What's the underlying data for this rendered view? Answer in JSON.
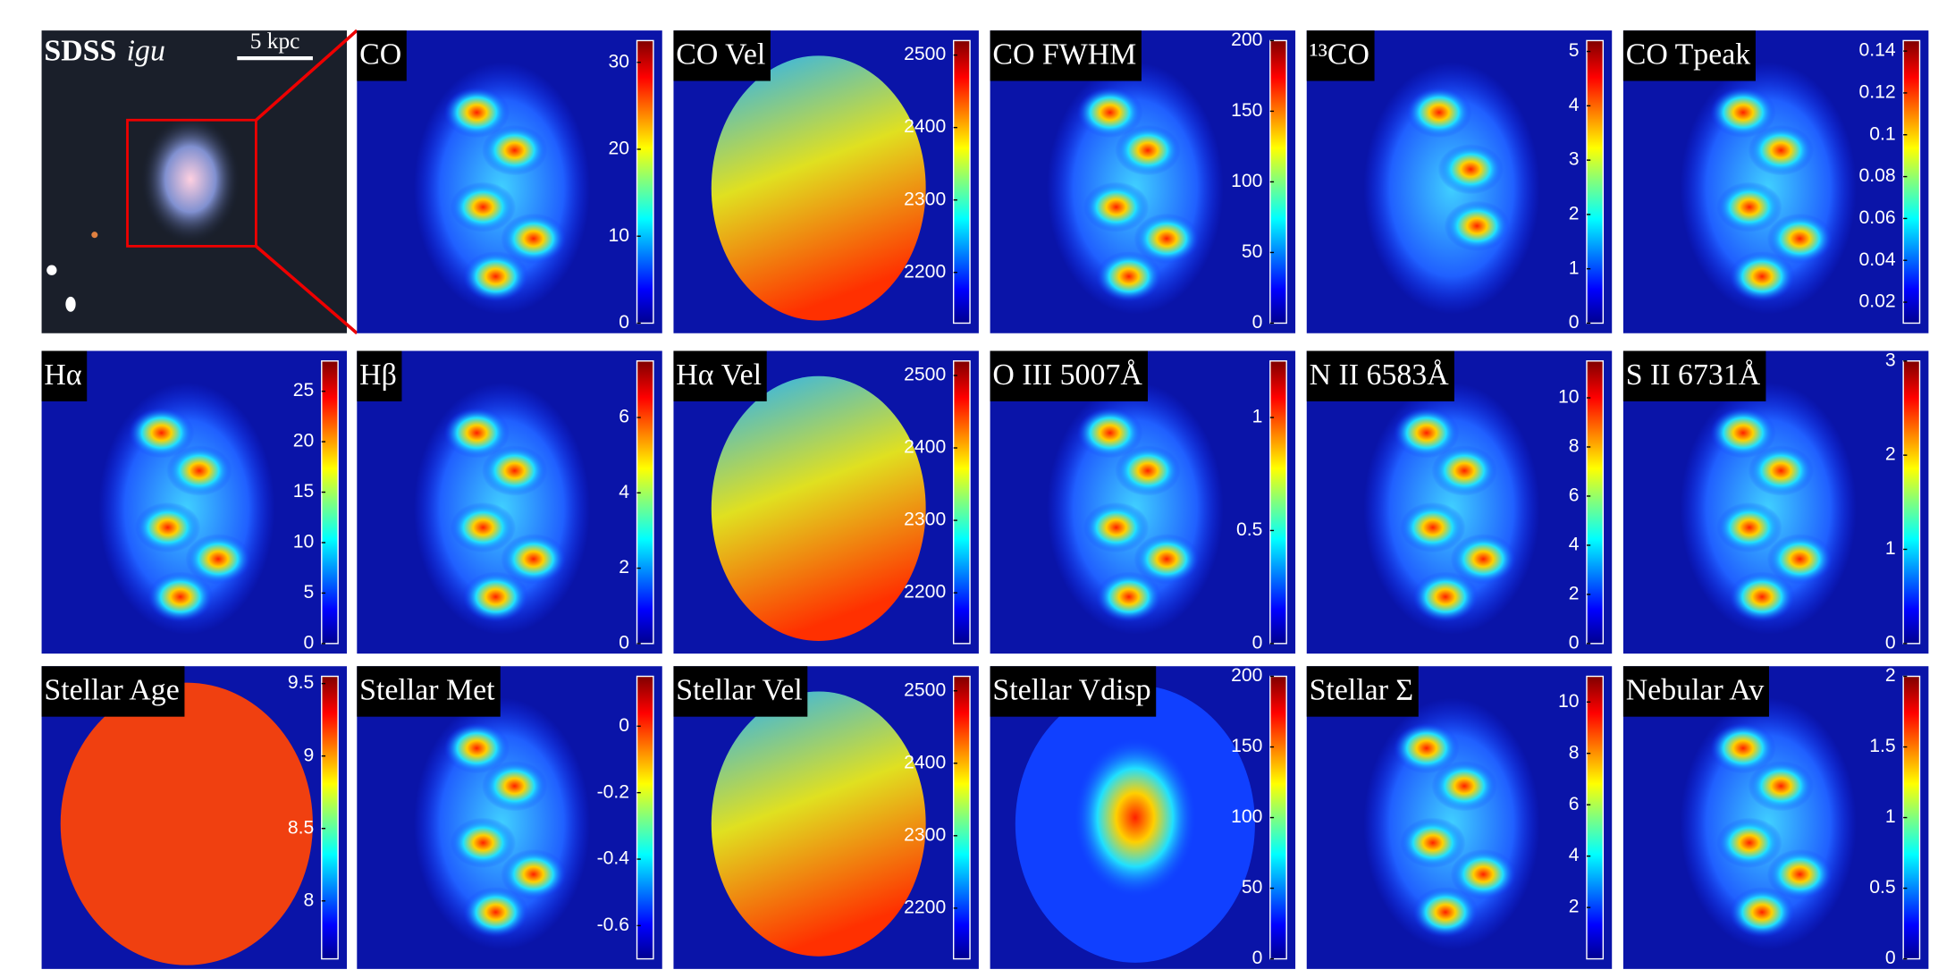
{
  "panels": [
    {
      "title": "SDSS",
      "title_italic": "igu",
      "scalebar": "5 kpc"
    },
    {
      "title": "CO",
      "cbar": {
        "lim": [
          0,
          32.5
        ],
        "ticks": [
          0,
          10,
          20,
          30
        ]
      }
    },
    {
      "title": "CO Vel",
      "cbar": {
        "lim": [
          2130,
          2520
        ],
        "ticks": [
          2200,
          2300,
          2400,
          2500
        ]
      }
    },
    {
      "title": "CO FWHM",
      "cbar": {
        "lim": [
          0,
          200
        ],
        "ticks": [
          0,
          50,
          100,
          150,
          200
        ]
      }
    },
    {
      "title": "¹³CO",
      "cbar": {
        "lim": [
          0,
          5.2
        ],
        "ticks": [
          0,
          1,
          2,
          3,
          4,
          5
        ]
      }
    },
    {
      "title": "CO Tpeak",
      "cbar": {
        "lim": [
          0.01,
          0.145
        ],
        "ticks": [
          0.02,
          0.04,
          0.06,
          0.08,
          0.1,
          0.12,
          0.14
        ]
      }
    },
    {
      "title": "Hα",
      "cbar": {
        "lim": [
          0,
          28
        ],
        "ticks": [
          0,
          5,
          10,
          15,
          20,
          25
        ]
      }
    },
    {
      "title": "Hβ",
      "cbar": {
        "lim": [
          0,
          7.5
        ],
        "ticks": [
          0,
          2,
          4,
          6
        ]
      }
    },
    {
      "title": "Hα Vel",
      "cbar": {
        "lim": [
          2130,
          2520
        ],
        "ticks": [
          2200,
          2300,
          2400,
          2500
        ]
      }
    },
    {
      "title": "O III 5007Å",
      "cbar": {
        "lim": [
          0,
          1.25
        ],
        "ticks": [
          0,
          0.5,
          1
        ]
      }
    },
    {
      "title": "N II 6583Å",
      "cbar": {
        "lim": [
          0,
          11.5
        ],
        "ticks": [
          0,
          2,
          4,
          6,
          8,
          10
        ]
      }
    },
    {
      "title": "S II 6731Å",
      "cbar": {
        "lim": [
          0,
          3
        ],
        "ticks": [
          0,
          1,
          2,
          3
        ]
      }
    },
    {
      "title": "Stellar Age",
      "cbar": {
        "lim": [
          7.6,
          9.55
        ],
        "ticks": [
          8,
          8.5,
          9,
          9.5
        ]
      }
    },
    {
      "title": "Stellar Met",
      "cbar": {
        "lim": [
          -0.7,
          0.15
        ],
        "ticks": [
          -0.6,
          -0.4,
          -0.2,
          0
        ]
      }
    },
    {
      "title": "Stellar Vel",
      "cbar": {
        "lim": [
          2130,
          2520
        ],
        "ticks": [
          2200,
          2300,
          2400,
          2500
        ]
      }
    },
    {
      "title": "Stellar Vdisp",
      "cbar": {
        "lim": [
          0,
          200
        ],
        "ticks": [
          0,
          50,
          100,
          150,
          200
        ]
      }
    },
    {
      "title": "Stellar Σ",
      "cbar": {
        "lim": [
          0,
          11
        ],
        "ticks": [
          2,
          4,
          6,
          8,
          10
        ]
      }
    },
    {
      "title": "Nebular Av",
      "cbar": {
        "lim": [
          0,
          2
        ],
        "ticks": [
          0,
          0.5,
          1,
          1.5,
          2
        ]
      }
    }
  ]
}
